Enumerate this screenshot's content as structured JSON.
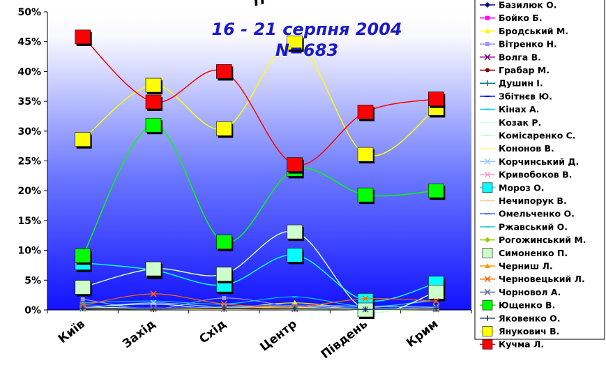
{
  "chart_data": {
    "type": "line",
    "title": "П",
    "annotation": {
      "date": "16 - 21 серпня 2004",
      "n": "N=683"
    },
    "categories": [
      "Київ",
      "Захід",
      "Схід",
      "Центр",
      "Південь",
      "Крим"
    ],
    "yticks": [
      "0%",
      "5%",
      "10%",
      "15%",
      "20%",
      "25%",
      "30%",
      "35%",
      "40%",
      "45%",
      "50%"
    ],
    "ylim": [
      0,
      50
    ],
    "grid": false,
    "legend_position": "right",
    "series": [
      {
        "name": "Базилюк О.",
        "color": "#000080",
        "marker": "diamond",
        "values": [
          0.6,
          0.3,
          0.2,
          0.2,
          0.3,
          0.2
        ]
      },
      {
        "name": "Бойко Б.",
        "color": "#ff00ff",
        "marker": "square",
        "values": [
          0.5,
          0.2,
          0.3,
          0.4,
          0.1,
          0.3
        ]
      },
      {
        "name": "Бродський М.",
        "color": "#ffff00",
        "marker": "triangle",
        "values": [
          0.3,
          0.1,
          0.2,
          1.2,
          0.1,
          0.1
        ]
      },
      {
        "name": "Вітренко Н.",
        "color": "#9999ff",
        "marker": "square",
        "values": [
          1.8,
          0.2,
          2.0,
          0.6,
          0.3,
          1.8
        ]
      },
      {
        "name": "Волга В.",
        "color": "#800080",
        "marker": "x",
        "values": [
          0.4,
          0.3,
          0.5,
          0.3,
          0.2,
          0.3
        ]
      },
      {
        "name": "Грабар М.",
        "color": "#800000",
        "marker": "circle",
        "values": [
          0.3,
          0.1,
          0.4,
          0.2,
          0.1,
          0.3
        ]
      },
      {
        "name": "Душин І.",
        "color": "#008080",
        "marker": "plus",
        "values": [
          0.3,
          0.3,
          0.1,
          0.2,
          0.1,
          0.1
        ]
      },
      {
        "name": "Збітнєв Ю.",
        "color": "#0000ff",
        "marker": "dash",
        "values": [
          0.2,
          0.1,
          0.2,
          0.1,
          0.1,
          0.2
        ]
      },
      {
        "name": "Кінах А.",
        "color": "#00ccff",
        "marker": "dash",
        "values": [
          1.2,
          1.5,
          1.0,
          2.2,
          0.6,
          1.6
        ]
      },
      {
        "name": "Козак Р.",
        "color": "#ccffff",
        "marker": "dash",
        "values": [
          0.4,
          1.0,
          0.1,
          0.3,
          0.0,
          0.2
        ]
      },
      {
        "name": "Комісаренко С.",
        "color": "#ccffcc",
        "marker": "dash",
        "values": [
          0.5,
          0.3,
          0.4,
          0.7,
          0.2,
          0.4
        ]
      },
      {
        "name": "Кононов В.",
        "color": "#ffff99",
        "marker": "dash",
        "values": [
          0.3,
          0.2,
          0.3,
          0.4,
          0.1,
          0.2
        ]
      },
      {
        "name": "Корчинський Д.",
        "color": "#99ccff",
        "marker": "x",
        "values": [
          0.4,
          1.2,
          0.5,
          0.8,
          0.6,
          0.5
        ]
      },
      {
        "name": "Кривобоков В.",
        "color": "#ff99cc",
        "marker": "x",
        "values": [
          0.2,
          0.1,
          0.2,
          0.1,
          0.1,
          0.1
        ]
      },
      {
        "name": "Мороз О.",
        "color": "#00ffff",
        "marker": "square",
        "values": [
          7.9,
          6.7,
          4.2,
          9.2,
          1.6,
          4.5
        ]
      },
      {
        "name": "Нечипорук В.",
        "color": "#ffcc99",
        "marker": "dash",
        "values": [
          0.2,
          0.1,
          0.1,
          0.2,
          0.1,
          0.1
        ]
      },
      {
        "name": "Омельченко О.",
        "color": "#3366ff",
        "marker": "dash",
        "values": [
          0.9,
          0.3,
          0.6,
          0.8,
          0.3,
          0.5
        ]
      },
      {
        "name": "Ржавський О.",
        "color": "#33cccc",
        "marker": "dash",
        "values": [
          0.3,
          0.2,
          0.2,
          0.3,
          0.1,
          0.2
        ]
      },
      {
        "name": "Рогожинський М.",
        "color": "#99cc00",
        "marker": "diamond",
        "values": [
          0.2,
          0.1,
          0.1,
          0.2,
          0.1,
          0.1
        ]
      },
      {
        "name": "Симоненко П.",
        "color": "#ccffcc",
        "marker": "square",
        "values": [
          3.8,
          6.9,
          6.0,
          13.1,
          0.0,
          3.0
        ]
      },
      {
        "name": "Черниш Л.",
        "color": "#ff9900",
        "marker": "triangle",
        "values": [
          0.2,
          0.1,
          0.1,
          0.1,
          0.1,
          0.1
        ]
      },
      {
        "name": "Черновецький Л.",
        "color": "#ff6600",
        "marker": "x",
        "values": [
          0.8,
          2.7,
          1.0,
          0.5,
          1.9,
          1.5
        ]
      },
      {
        "name": "Чорновол А.",
        "color": "#666699",
        "marker": "x",
        "values": [
          0.3,
          0.2,
          0.2,
          0.2,
          0.1,
          0.1
        ]
      },
      {
        "name": "Ющенко В.",
        "color": "#00ff00",
        "marker": "square",
        "values": [
          9.1,
          31.0,
          11.4,
          23.6,
          19.3,
          20.0
        ]
      },
      {
        "name": "Яковенко О.",
        "color": "#003366",
        "marker": "plus",
        "values": [
          0.3,
          0.1,
          0.3,
          0.2,
          0.1,
          0.2
        ]
      },
      {
        "name": "Янукович В.",
        "color": "#ffff00",
        "marker": "square",
        "values": [
          28.6,
          37.7,
          30.4,
          44.8,
          26.1,
          33.8
        ]
      },
      {
        "name": "Кучма Л.",
        "color": "#ff0000",
        "marker": "square",
        "values": [
          45.8,
          34.9,
          40.0,
          24.4,
          33.2,
          35.4
        ]
      }
    ]
  }
}
